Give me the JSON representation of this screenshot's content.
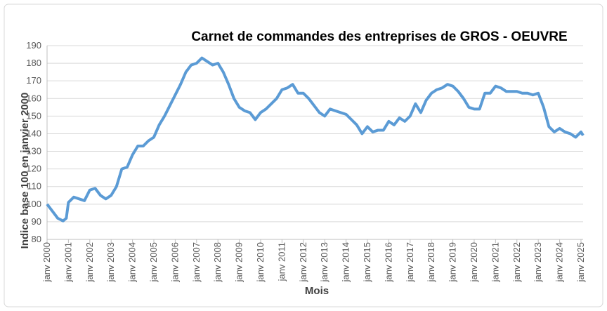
{
  "chart_data": {
    "type": "line",
    "title": "Carnet de commandes des entreprises de GROS - OEUVRE",
    "x_label": "Mois",
    "y_label": "Indice base 100 en janvier 2000",
    "x": [
      2000,
      2000.25,
      2000.5,
      2000.75,
      2000.9,
      2001,
      2001.25,
      2001.5,
      2001.75,
      2002,
      2002.25,
      2002.5,
      2002.75,
      2003,
      2003.25,
      2003.5,
      2003.75,
      2004,
      2004.25,
      2004.5,
      2004.75,
      2005,
      2005.25,
      2005.5,
      2005.75,
      2006,
      2006.25,
      2006.5,
      2006.75,
      2007,
      2007.25,
      2007.5,
      2007.75,
      2008,
      2008.25,
      2008.5,
      2008.75,
      2009,
      2009.25,
      2009.5,
      2009.75,
      2010,
      2010.25,
      2010.5,
      2010.75,
      2011,
      2011.25,
      2011.5,
      2011.75,
      2012,
      2012.25,
      2012.5,
      2012.75,
      2013,
      2013.25,
      2013.5,
      2013.75,
      2014,
      2014.25,
      2014.5,
      2014.75,
      2015,
      2015.25,
      2015.5,
      2015.75,
      2016,
      2016.25,
      2016.5,
      2016.75,
      2017,
      2017.25,
      2017.5,
      2017.75,
      2018,
      2018.25,
      2018.5,
      2018.75,
      2019,
      2019.25,
      2019.5,
      2019.75,
      2020,
      2020.25,
      2020.5,
      2020.75,
      2021,
      2021.25,
      2021.5,
      2021.75,
      2022,
      2022.25,
      2022.5,
      2022.75,
      2023,
      2023.25,
      2023.5,
      2023.75,
      2024,
      2024.25,
      2024.5,
      2024.75,
      2025,
      2025.1
    ],
    "series": [
      {
        "name": "Carnet de commandes",
        "color": "#5b9bd5",
        "values": [
          100,
          96,
          92,
          90.5,
          92,
          101,
          104,
          103,
          102,
          108,
          109,
          105,
          103,
          105,
          110,
          120,
          121,
          128,
          133,
          133,
          136,
          138,
          145,
          150,
          156,
          162,
          168,
          175,
          179,
          180,
          183,
          181,
          179,
          180,
          175,
          168,
          160,
          155,
          153,
          152,
          148,
          152,
          154,
          157,
          160,
          165,
          166,
          168,
          163,
          163,
          160,
          156,
          152,
          150,
          154,
          153,
          152,
          151,
          148,
          145,
          140,
          144,
          141,
          142,
          142,
          147,
          145,
          149,
          147,
          150,
          157,
          152,
          159,
          163,
          165,
          166,
          168,
          167,
          164,
          160,
          155,
          154,
          154,
          163,
          163,
          167,
          166,
          164,
          164,
          164,
          163,
          163,
          162,
          163,
          155,
          144,
          141,
          143,
          141,
          140,
          138,
          141,
          139
        ]
      }
    ],
    "xlim": [
      2000,
      2025.1
    ],
    "xticks": [
      {
        "value": 2000,
        "label": "janv 2000"
      },
      {
        "value": 2001,
        "label": "janv 2001"
      },
      {
        "value": 2002,
        "label": "janv 2002"
      },
      {
        "value": 2003,
        "label": "janv 2003"
      },
      {
        "value": 2004,
        "label": "janv 2004"
      },
      {
        "value": 2005,
        "label": "janv 2005"
      },
      {
        "value": 2006,
        "label": "janv 2006"
      },
      {
        "value": 2007,
        "label": "janv 2007"
      },
      {
        "value": 2008,
        "label": "janv 2008"
      },
      {
        "value": 2009,
        "label": "janv 2009"
      },
      {
        "value": 2010,
        "label": "janv 2010"
      },
      {
        "value": 2011,
        "label": "janv 2011"
      },
      {
        "value": 2012,
        "label": "janv 2012"
      },
      {
        "value": 2013,
        "label": "janv 2013"
      },
      {
        "value": 2014,
        "label": "janv 2014"
      },
      {
        "value": 2015,
        "label": "janv 2015"
      },
      {
        "value": 2016,
        "label": "janv 2016"
      },
      {
        "value": 2017,
        "label": "janv 2017"
      },
      {
        "value": 2018,
        "label": "janv 2018"
      },
      {
        "value": 2019,
        "label": "janv 2019"
      },
      {
        "value": 2020,
        "label": "janv 2020"
      },
      {
        "value": 2021,
        "label": "janv 2021"
      },
      {
        "value": 2022,
        "label": "janv 2022"
      },
      {
        "value": 2023,
        "label": "janv 2023"
      },
      {
        "value": 2024,
        "label": "janv 2024"
      },
      {
        "value": 2025,
        "label": "janv 2025"
      }
    ],
    "ylim": [
      80,
      190
    ],
    "yticks": [
      80,
      90,
      100,
      110,
      120,
      130,
      140,
      150,
      160,
      170,
      180,
      190
    ],
    "grid": true
  }
}
